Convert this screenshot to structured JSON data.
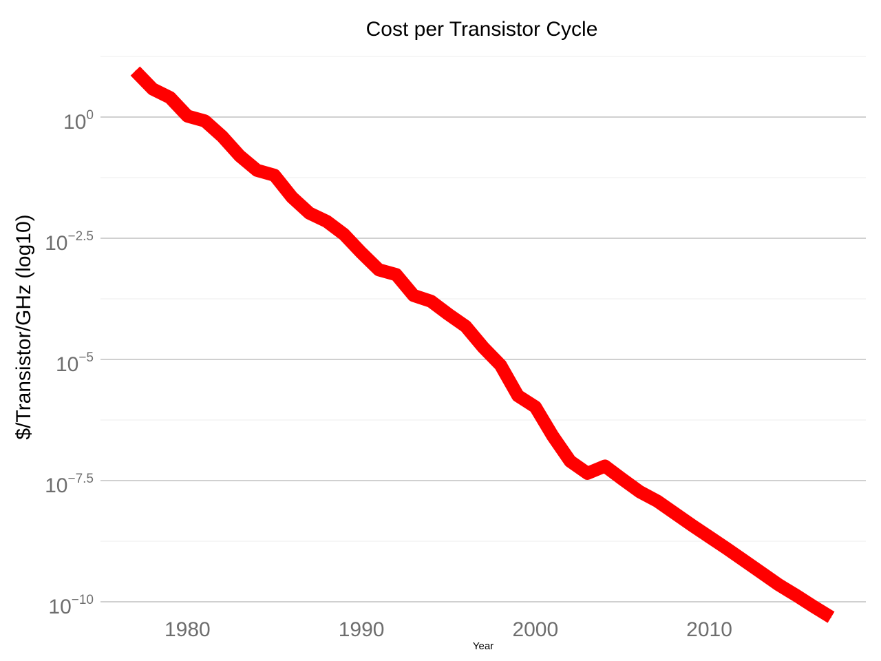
{
  "chart_data": {
    "type": "line",
    "title": "Cost per Transistor Cycle",
    "xlabel": "Year",
    "ylabel": "$/Transistor/GHz (log10)",
    "y_scale": "log10",
    "x_ticks": [
      1980,
      1990,
      2000,
      2010
    ],
    "y_ticks": [
      {
        "base": "10",
        "exp": "0",
        "value": 0
      },
      {
        "base": "10",
        "exp": "−2.5",
        "value": -2.5
      },
      {
        "base": "10",
        "exp": "−5",
        "value": -5
      },
      {
        "base": "10",
        "exp": "−7.5",
        "value": -7.5
      },
      {
        "base": "10",
        "exp": "−10",
        "value": -10
      }
    ],
    "xlim": [
      1975,
      2019
    ],
    "ylim_log10": [
      -10,
      1.25
    ],
    "grid": true,
    "series": [
      {
        "color": "#ff0000",
        "x": [
          1977,
          1978,
          1979,
          1980,
          1981,
          1982,
          1983,
          1984,
          1985,
          1986,
          1987,
          1988,
          1989,
          1990,
          1991,
          1992,
          1993,
          1994,
          1995,
          1996,
          1997,
          1998,
          1999,
          2000,
          2001,
          2002,
          2003,
          2004,
          2005,
          2006,
          2007,
          2008,
          2009,
          2010,
          2011,
          2012,
          2013,
          2014,
          2015,
          2016,
          2017
        ],
        "y_log10": [
          0.95,
          0.58,
          0.4,
          0.02,
          -0.08,
          -0.4,
          -0.8,
          -1.1,
          -1.2,
          -1.65,
          -1.98,
          -2.15,
          -2.42,
          -2.8,
          -3.15,
          -3.25,
          -3.68,
          -3.8,
          -4.07,
          -4.32,
          -4.75,
          -5.12,
          -5.75,
          -5.98,
          -6.58,
          -7.1,
          -7.35,
          -7.2,
          -7.47,
          -7.73,
          -7.92,
          -8.17,
          -8.42,
          -8.66,
          -8.9,
          -9.15,
          -9.4,
          -9.65,
          -9.87,
          -10.1,
          -10.32
        ]
      }
    ]
  }
}
